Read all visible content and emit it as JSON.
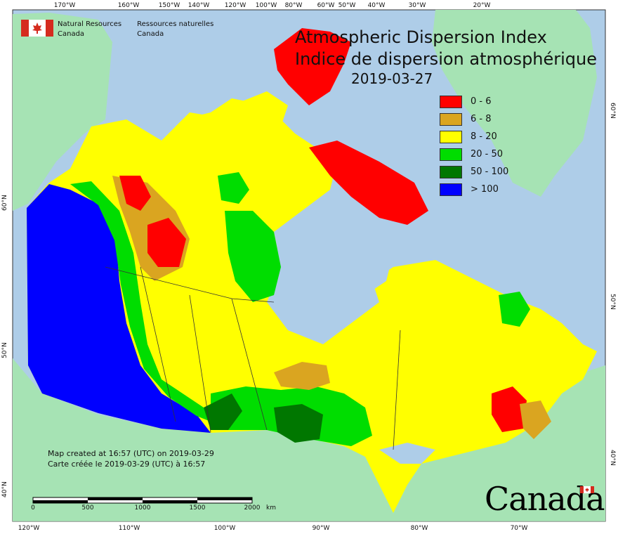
{
  "title_en": "Atmospheric Dispersion Index",
  "title_fr": "Indice de dispersion atmosphérique",
  "date": "2019-03-27",
  "agency_en": [
    "Natural Resources",
    "Canada"
  ],
  "agency_fr": [
    "Ressources naturelles",
    "Canada"
  ],
  "created_en": "Map created at 16:57 (UTC) on 2019-03-29",
  "created_fr": "Carte créée le 2019-03-29 (UTC) à 16:57",
  "wordmark": "Canada",
  "top_ticks": [
    "170°W",
    "160°W",
    "150°W",
    "140°W",
    "120°W",
    "100°W",
    "80°W",
    "60°W",
    "50°W",
    "40°W",
    "30°W",
    "20°W"
  ],
  "bottom_ticks": [
    "120°W",
    "110°W",
    "100°W",
    "90°W",
    "80°W",
    "70°W"
  ],
  "left_ticks": [
    "60°N",
    "50°N",
    "40°N"
  ],
  "right_ticks": [
    "60°N",
    "50°N",
    "40°N"
  ],
  "scale": {
    "labels": [
      "0",
      "500",
      "1000",
      "1500",
      "2000"
    ],
    "unit": "km"
  },
  "legend": [
    {
      "label": "0 - 6",
      "color": "#ff0000"
    },
    {
      "label": "6 - 8",
      "color": "#daa520"
    },
    {
      "label": "8 - 20",
      "color": "#ffff00"
    },
    {
      "label": "20 - 50",
      "color": "#00dd00"
    },
    {
      "label": "50 - 100",
      "color": "#007700"
    },
    {
      "label": "> 100",
      "color": "#0000ff"
    }
  ],
  "colors": {
    "ocean": "#aecde8",
    "foreign_land": "#a6e3b4"
  }
}
